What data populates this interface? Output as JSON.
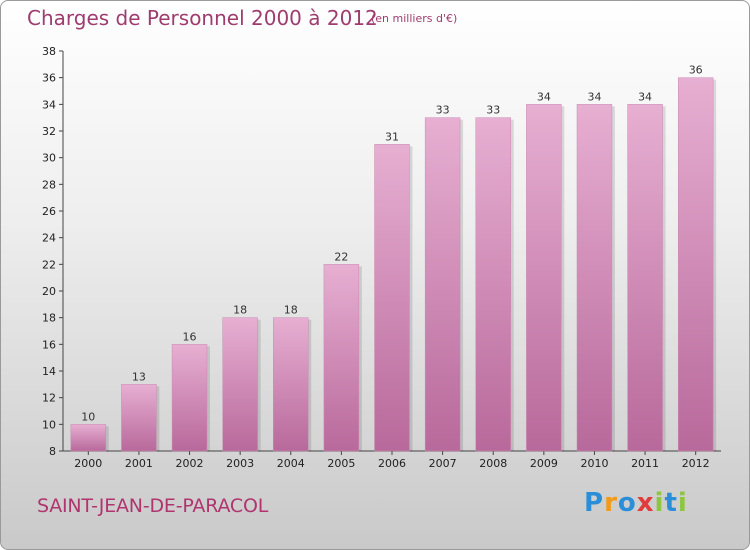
{
  "header": {
    "title": "Charges de Personnel 2000 à 2012",
    "subtitle": "(en milliers d'€)"
  },
  "footer": {
    "place": "SAINT-JEAN-DE-PARACOL",
    "logo": {
      "letters": [
        "P",
        "r",
        "o",
        "x",
        "i",
        "t",
        "i"
      ],
      "colors": [
        "#2a8fd8",
        "#f39a16",
        "#2a8fd8",
        "#e23b3b",
        "#8dc63f",
        "#2a8fd8",
        "#8dc63f"
      ]
    }
  },
  "colors": {
    "bar": "#d58fbc",
    "bar_light": "#e7afd2",
    "bar_dark": "#b8699b",
    "text_accent": "#9e3c6f"
  },
  "chart_data": {
    "type": "bar",
    "title": "Charges de Personnel 2000 à 2012",
    "subtitle": "(en milliers d'€)",
    "categories": [
      "2000",
      "2001",
      "2002",
      "2003",
      "2004",
      "2005",
      "2006",
      "2007",
      "2008",
      "2009",
      "2010",
      "2011",
      "2012"
    ],
    "values": [
      10,
      13,
      16,
      18,
      18,
      22,
      31,
      33,
      33,
      34,
      34,
      34,
      36
    ],
    "ylim": [
      8,
      38
    ],
    "yticks": [
      8,
      10,
      12,
      14,
      16,
      18,
      20,
      22,
      24,
      26,
      28,
      30,
      32,
      34,
      36,
      38
    ],
    "grid": false,
    "data_labels": true
  }
}
